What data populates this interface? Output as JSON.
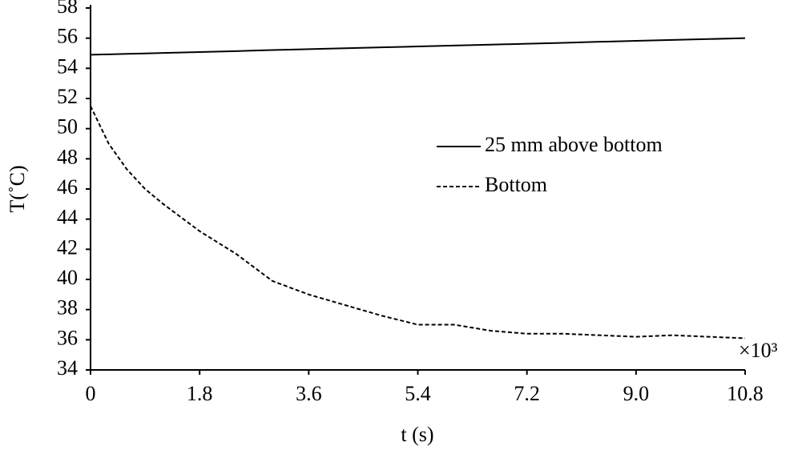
{
  "chart_data": {
    "type": "line",
    "x_label": "t (s)",
    "y_label": "T(˚C)",
    "annotation": "×10³",
    "x": [
      0,
      0.3,
      0.6,
      0.9,
      1.2,
      1.8,
      2.4,
      2.7,
      3.0,
      3.6,
      4.2,
      4.8,
      5.4,
      6.0,
      6.6,
      7.2,
      7.8,
      8.4,
      9.0,
      9.6,
      10.2,
      10.8
    ],
    "series": [
      {
        "name": "25 mm above bottom",
        "color": "#000000",
        "linestyle": "solid",
        "values": [
          54.9,
          54.93,
          54.96,
          54.99,
          55.02,
          55.08,
          55.14,
          55.18,
          55.21,
          55.27,
          55.33,
          55.39,
          55.45,
          55.51,
          55.57,
          55.63,
          55.69,
          55.76,
          55.82,
          55.88,
          55.94,
          56.0
        ]
      },
      {
        "name": "Bottom",
        "color": "#000000",
        "linestyle": "dashed",
        "values": [
          51.5,
          49,
          47.3,
          46,
          45,
          43.2,
          41.7,
          40.8,
          39.9,
          39,
          38.3,
          37.6,
          37.0,
          37.0,
          36.6,
          36.4,
          36.4,
          36.3,
          36.2,
          36.3,
          36.2,
          36.1
        ]
      }
    ],
    "xlim": [
      0,
      10.8
    ],
    "xticks": [
      0,
      1.8,
      3.6,
      5.4,
      7.2,
      {
        "value": 9,
        "label": "9.0"
      },
      10.8
    ],
    "ylim": [
      34,
      58
    ],
    "yticks": [
      34,
      36,
      38,
      40,
      42,
      44,
      46,
      48,
      50,
      52,
      54,
      56,
      58
    ],
    "grid": false,
    "legend": "center right"
  }
}
